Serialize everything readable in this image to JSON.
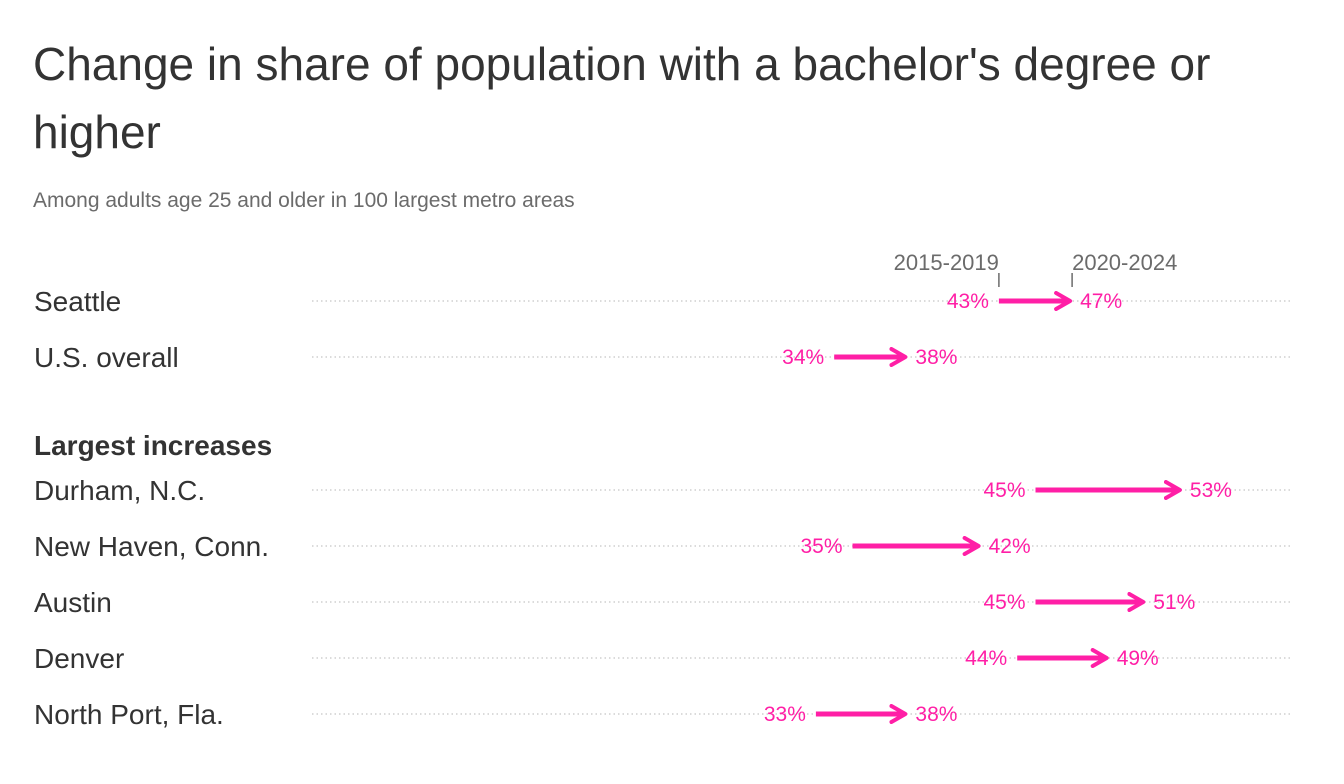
{
  "title": "Change in share of population with a bachelor's degree or higher",
  "subtitle": "Among adults age 25 and older in 100 largest metro areas",
  "colors": {
    "accent": "#ff1fa6",
    "text": "#333333",
    "muted": "#6b6b6b",
    "dots": "#cfcfcf"
  },
  "chart_data": {
    "type": "arrow",
    "start_label": "2015-2019",
    "end_label": "2020-2024",
    "units": "%",
    "rows": [
      {
        "name": "Seattle",
        "start": 43,
        "end": 47
      },
      {
        "name": "U.S. overall",
        "start": 34,
        "end": 38
      },
      {
        "section": "Largest increases"
      },
      {
        "name": "Durham, N.C.",
        "start": 45,
        "end": 53
      },
      {
        "name": "New Haven, Conn.",
        "start": 35,
        "end": 42
      },
      {
        "name": "Austin",
        "start": 45,
        "end": 51
      },
      {
        "name": "Denver",
        "start": 44,
        "end": 49
      },
      {
        "name": "North Port, Fla.",
        "start": 33,
        "end": 38
      }
    ]
  }
}
